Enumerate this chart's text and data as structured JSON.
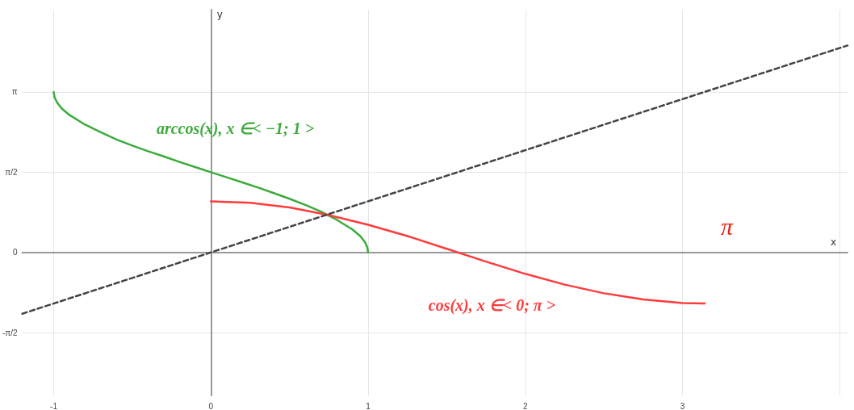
{
  "chart_data": {
    "type": "line",
    "xlabel": "x",
    "ylabel": "y",
    "xlim": [
      -1.2,
      4.05
    ],
    "ylim": [
      -2.8,
      4.75
    ],
    "xticks": [
      -1,
      0,
      1,
      2,
      3,
      {
        "value": 4,
        "label": null
      }
    ],
    "yticks": [
      {
        "value": -1.5708,
        "label": "-π/2"
      },
      0,
      {
        "value": 1.5708,
        "label": "π/2"
      },
      {
        "value": 3.1416,
        "label": "π"
      }
    ],
    "grid": true,
    "legend": false,
    "marker": "none",
    "series": [
      {
        "name": "arccos(x), x ∈< −1; 1 >",
        "color": "#3cab3c",
        "x": [
          -1,
          -0.995,
          -0.98,
          -0.95,
          -0.9,
          -0.8,
          -0.7,
          -0.6,
          -0.5,
          -0.4,
          -0.3,
          -0.2,
          -0.1,
          0,
          0.1,
          0.2,
          0.3,
          0.4,
          0.5,
          0.6,
          0.7,
          0.8,
          0.9,
          0.95,
          0.98,
          0.995,
          1
        ],
        "values": [
          3.14,
          3.04,
          2.94,
          2.82,
          2.69,
          2.5,
          2.35,
          2.21,
          2.09,
          1.98,
          1.88,
          1.77,
          1.67,
          1.57,
          1.47,
          1.37,
          1.27,
          1.16,
          1.05,
          0.93,
          0.8,
          0.64,
          0.45,
          0.32,
          0.2,
          0.1,
          0
        ]
      },
      {
        "name": "cos(x), x ∈< 0; π >",
        "color": "#ff3b3b",
        "x": [
          0,
          0.25,
          0.5,
          0.75,
          1,
          1.25,
          1.5,
          1.75,
          2,
          2.25,
          2.5,
          2.75,
          3,
          3.1416
        ],
        "values": [
          1,
          0.97,
          0.88,
          0.73,
          0.54,
          0.32,
          0.07,
          -0.18,
          -0.42,
          -0.63,
          -0.8,
          -0.92,
          -0.99,
          -1
        ]
      },
      {
        "color": "#444444",
        "line_style": "dashed",
        "x": [
          -1.2,
          4.05
        ],
        "values": [
          -1.2,
          4.05
        ]
      }
    ],
    "annotations": [
      "π"
    ]
  }
}
